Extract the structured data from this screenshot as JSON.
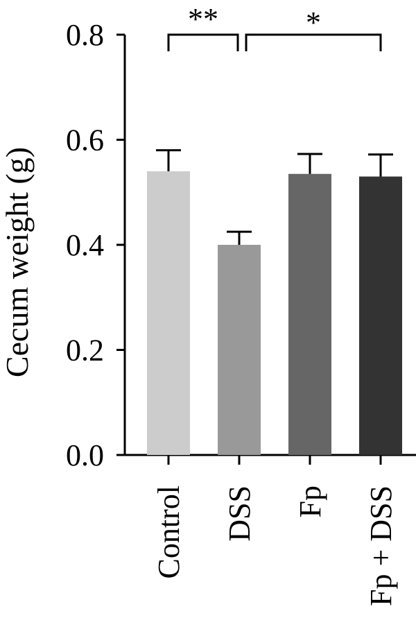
{
  "chart_data": {
    "type": "bar",
    "title": "",
    "xlabel": "",
    "ylabel": "Cecum weight (g)",
    "ylim": [
      0,
      0.8
    ],
    "yticks": [
      0.0,
      0.2,
      0.4,
      0.6,
      0.8
    ],
    "ytick_labels": [
      "0.0",
      "0.2",
      "0.4",
      "0.6",
      "0.8"
    ],
    "categories": [
      "Control",
      "DSS",
      "Fp",
      "Fp + DSS"
    ],
    "values": [
      0.54,
      0.4,
      0.535,
      0.53
    ],
    "errors": [
      0.04,
      0.025,
      0.038,
      0.042
    ],
    "bar_colors": [
      "#cccccc",
      "#999999",
      "#666666",
      "#333333"
    ],
    "significance": [
      {
        "from": "Control",
        "to": "DSS",
        "label": "**"
      },
      {
        "from": "DSS",
        "to": "Fp + DSS",
        "label": "*"
      }
    ],
    "grid": false,
    "legend": "none"
  }
}
